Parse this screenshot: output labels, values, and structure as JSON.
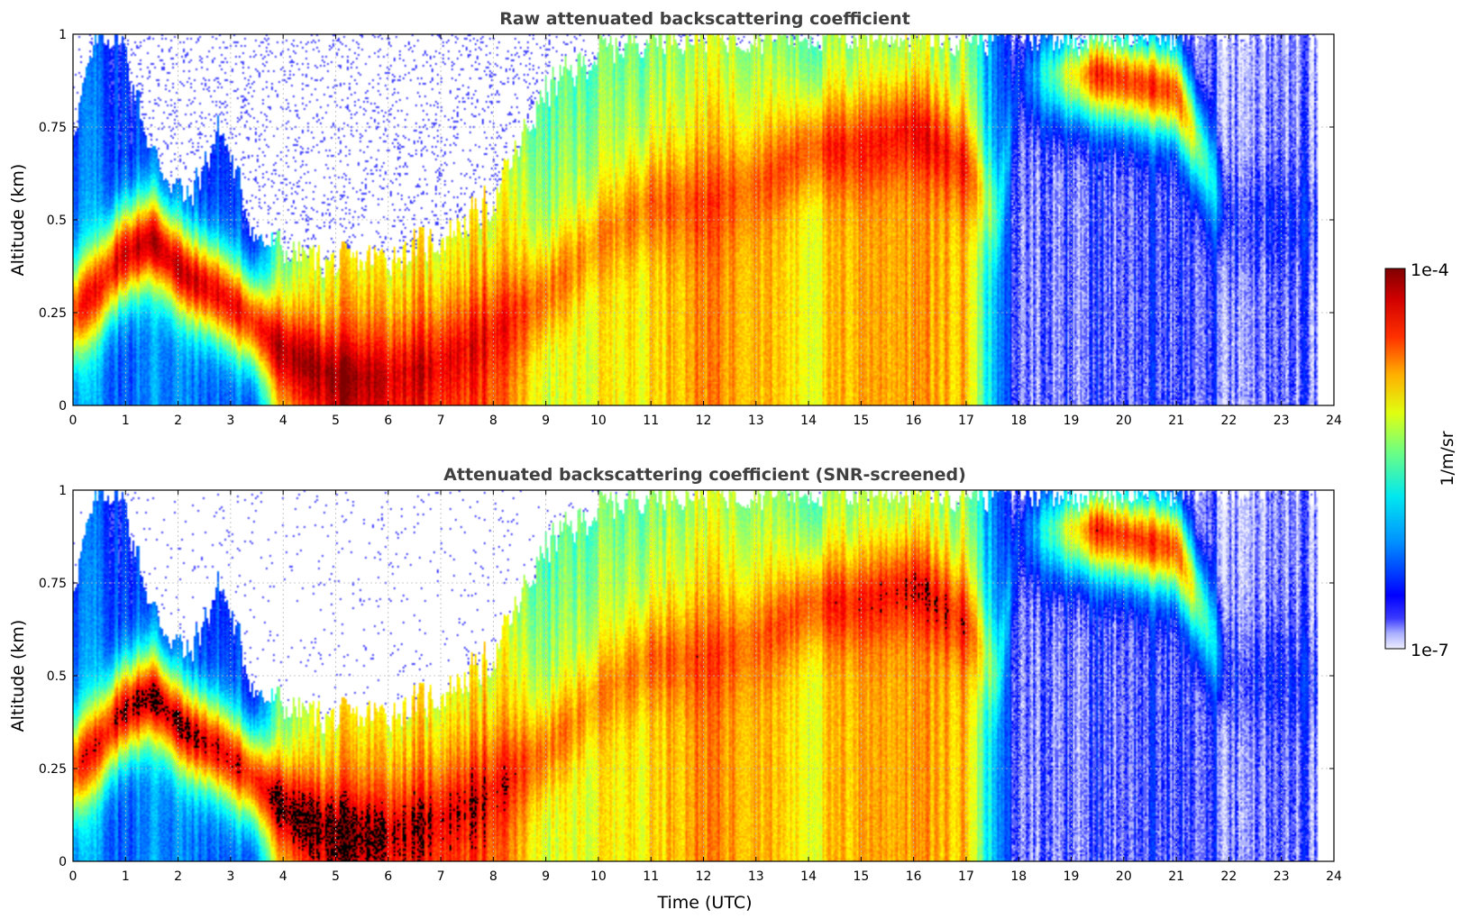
{
  "chart_data": [
    {
      "type": "heatmap",
      "title": "Raw attenuated backscattering coefficient",
      "xlabel": "",
      "ylabel": "Altitude (km)",
      "xlim": [
        0,
        24
      ],
      "ylim": [
        0,
        1
      ],
      "xticks": [
        0,
        1,
        2,
        3,
        4,
        5,
        6,
        7,
        8,
        9,
        10,
        11,
        12,
        13,
        14,
        15,
        16,
        17,
        18,
        19,
        20,
        21,
        22,
        23,
        24
      ],
      "xtick_labels": [
        "0",
        "1",
        "2",
        "3",
        "4",
        "5",
        "6",
        "7",
        "8",
        "9",
        "10",
        "11",
        "12",
        "13",
        "14",
        "15",
        "16",
        "17",
        "18",
        "19",
        "20",
        "21",
        "22",
        "23",
        "24"
      ],
      "yticks": [
        0,
        0.25,
        0.5,
        0.75,
        1
      ],
      "ytick_labels": [
        "0",
        "0.25",
        "0.5",
        "0.75",
        "1"
      ],
      "grid": true,
      "colorscale": "jet",
      "screened": false,
      "data_end_time": 23.7,
      "profiles": [
        {
          "t": 0.0,
          "top": 0.75,
          "peak_h": 0.25,
          "peak_v": 0.85,
          "base_v": 0.3
        },
        {
          "t": 0.5,
          "top": 1.0,
          "peak_h": 0.32,
          "peak_v": 0.85,
          "base_v": 0.28
        },
        {
          "t": 0.9,
          "top": 1.0,
          "peak_h": 0.4,
          "peak_v": 0.9,
          "base_v": 0.2
        },
        {
          "t": 1.5,
          "top": 0.68,
          "peak_h": 0.45,
          "peak_v": 0.95,
          "base_v": 0.28
        },
        {
          "t": 2.2,
          "top": 0.55,
          "peak_h": 0.35,
          "peak_v": 0.92,
          "base_v": 0.25
        },
        {
          "t": 2.8,
          "top": 0.75,
          "peak_h": 0.3,
          "peak_v": 0.88,
          "base_v": 0.22
        },
        {
          "t": 3.5,
          "top": 0.45,
          "peak_h": 0.22,
          "peak_v": 0.85,
          "base_v": 0.22
        },
        {
          "t": 4.0,
          "top": 0.42,
          "peak_h": 0.15,
          "peak_v": 0.95,
          "base_v": 0.65
        },
        {
          "t": 5.0,
          "top": 0.38,
          "peak_h": 0.08,
          "peak_v": 0.97,
          "base_v": 0.8
        },
        {
          "t": 6.0,
          "top": 0.4,
          "peak_h": 0.08,
          "peak_v": 0.92,
          "base_v": 0.82
        },
        {
          "t": 7.0,
          "top": 0.45,
          "peak_h": 0.12,
          "peak_v": 0.9,
          "base_v": 0.8
        },
        {
          "t": 8.0,
          "top": 0.55,
          "peak_h": 0.2,
          "peak_v": 0.88,
          "base_v": 0.8
        },
        {
          "t": 9.0,
          "top": 0.85,
          "peak_h": 0.3,
          "peak_v": 0.75,
          "base_v": 0.58
        },
        {
          "t": 10.0,
          "top": 0.95,
          "peak_h": 0.45,
          "peak_v": 0.72,
          "base_v": 0.62
        },
        {
          "t": 11.0,
          "top": 1.0,
          "peak_h": 0.55,
          "peak_v": 0.78,
          "base_v": 0.66
        },
        {
          "t": 12.0,
          "top": 1.0,
          "peak_h": 0.55,
          "peak_v": 0.82,
          "base_v": 0.75
        },
        {
          "t": 13.0,
          "top": 1.0,
          "peak_h": 0.6,
          "peak_v": 0.8,
          "base_v": 0.72
        },
        {
          "t": 14.0,
          "top": 1.0,
          "peak_h": 0.7,
          "peak_v": 0.8,
          "base_v": 0.62
        },
        {
          "t": 15.0,
          "top": 1.0,
          "peak_h": 0.7,
          "peak_v": 0.86,
          "base_v": 0.72
        },
        {
          "t": 16.0,
          "top": 1.0,
          "peak_h": 0.75,
          "peak_v": 0.88,
          "base_v": 0.72
        },
        {
          "t": 17.0,
          "top": 1.0,
          "peak_h": 0.65,
          "peak_v": 0.86,
          "base_v": 0.7
        },
        {
          "t": 17.6,
          "top": 1.0,
          "peak_h": 0.5,
          "peak_v": 0.4,
          "base_v": 0.25
        },
        {
          "t": 18.0,
          "top": 1.0,
          "peak_h": 0.9,
          "peak_v": 0.16,
          "base_v": 0.1
        },
        {
          "t": 19.5,
          "top": 1.0,
          "peak_h": 0.9,
          "peak_v": 0.85,
          "base_v": 0.12
        },
        {
          "t": 21.0,
          "top": 1.0,
          "peak_h": 0.85,
          "peak_v": 0.8,
          "base_v": 0.12
        },
        {
          "t": 22.0,
          "top": 1.0,
          "peak_h": 0.5,
          "peak_v": 0.14,
          "base_v": 0.1
        },
        {
          "t": 23.7,
          "top": 1.0,
          "peak_h": 0.5,
          "peak_v": 0.14,
          "base_v": 0.1
        }
      ]
    },
    {
      "type": "heatmap",
      "title": "Attenuated backscattering coefficient (SNR-screened)",
      "xlabel": "Time (UTC)",
      "ylabel": "Altitude (km)",
      "xlim": [
        0,
        24
      ],
      "ylim": [
        0,
        1
      ],
      "xticks": [
        0,
        1,
        2,
        3,
        4,
        5,
        6,
        7,
        8,
        9,
        10,
        11,
        12,
        13,
        14,
        15,
        16,
        17,
        18,
        19,
        20,
        21,
        22,
        23,
        24
      ],
      "xtick_labels": [
        "0",
        "1",
        "2",
        "3",
        "4",
        "5",
        "6",
        "7",
        "8",
        "9",
        "10",
        "11",
        "12",
        "13",
        "14",
        "15",
        "16",
        "17",
        "18",
        "19",
        "20",
        "21",
        "22",
        "23",
        "24"
      ],
      "yticks": [
        0,
        0.25,
        0.5,
        0.75,
        1
      ],
      "ytick_labels": [
        "0",
        "0.25",
        "0.5",
        "0.75",
        "1"
      ],
      "grid": true,
      "colorscale": "jet",
      "screened": true,
      "data_end_time": 23.7,
      "profiles": "same as panel 1"
    }
  ],
  "colorbar": {
    "label": "1/m/sr",
    "max_label": "1e-4",
    "min_label": "1e-7",
    "scale": "log",
    "range": [
      1e-07,
      0.0001
    ],
    "colormap": "jet",
    "low_end_color": "#eeeeff"
  }
}
